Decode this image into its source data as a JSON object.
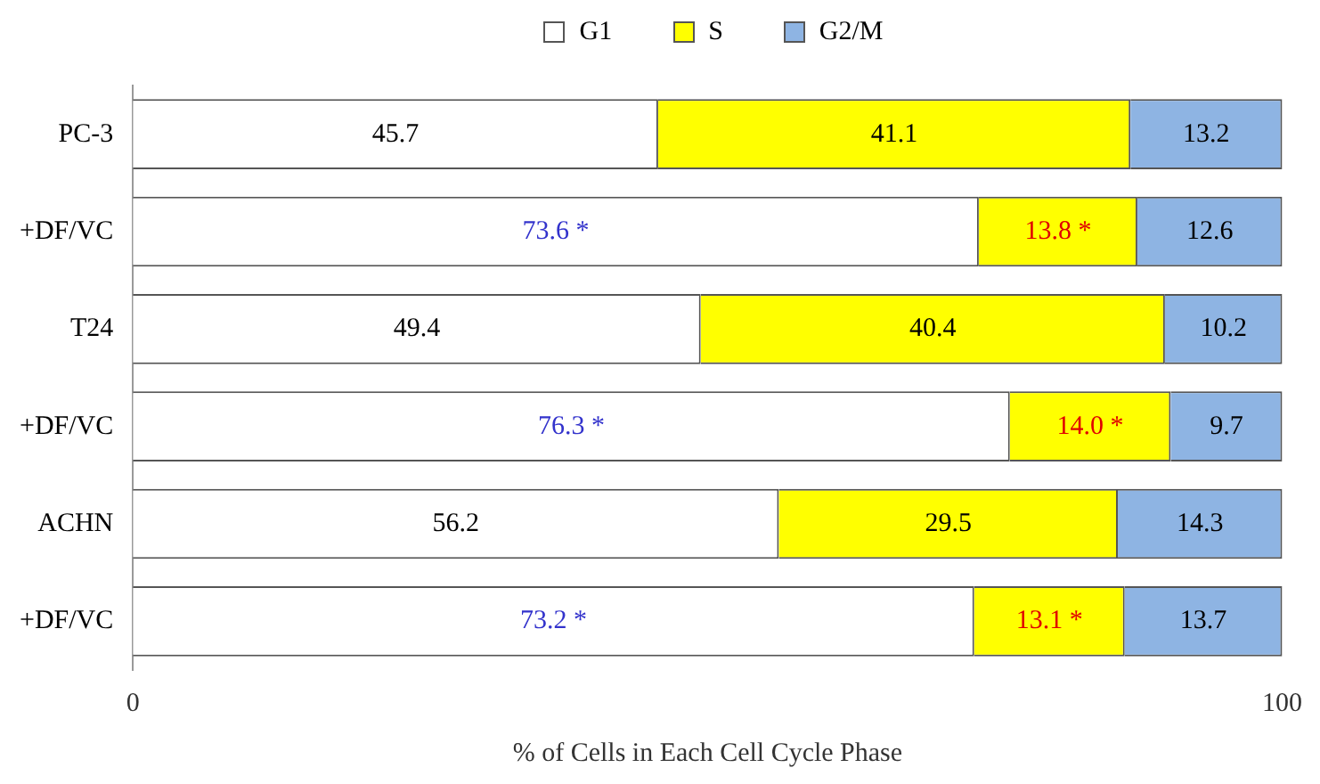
{
  "chart_data": {
    "type": "bar",
    "orientation": "horizontal",
    "stacked": true,
    "xlabel": "% of Cells in Each Cell Cycle Phase",
    "categories": [
      "PC-3",
      "+DF/VC",
      "T24",
      "+DF/VC",
      "ACHN",
      "+DF/VC"
    ],
    "series": [
      {
        "name": "G1",
        "color": "#ffffff",
        "values": [
          45.7,
          73.6,
          49.4,
          76.3,
          56.2,
          73.2
        ],
        "value_labels": [
          "45.7",
          "73.6 *",
          "49.4",
          "76.3 *",
          "56.2",
          "73.2 *"
        ]
      },
      {
        "name": "S",
        "color": "#ffff00",
        "values": [
          41.1,
          13.8,
          40.4,
          14.0,
          29.5,
          13.1
        ],
        "value_labels": [
          "41.1",
          "13.8 *",
          "40.4",
          "14.0 *",
          "29.5",
          "13.1 *"
        ]
      },
      {
        "name": "G2/M",
        "color": "#8eb4e3",
        "values": [
          13.2,
          12.6,
          10.2,
          9.7,
          14.3,
          13.7
        ],
        "value_labels": [
          "13.2",
          "12.6",
          "10.2",
          "9.7",
          "14.3",
          "13.7"
        ]
      }
    ],
    "xlim": [
      0,
      100
    ],
    "xticks": [
      0,
      100
    ],
    "grid": false,
    "legend": "top"
  }
}
